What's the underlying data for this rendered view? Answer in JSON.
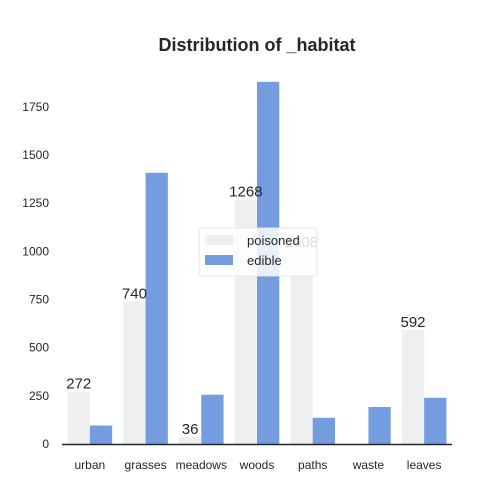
{
  "chart_data": {
    "type": "bar",
    "title": "Distribution of _habitat",
    "xlabel": "",
    "ylabel": "",
    "categories": [
      "urban",
      "grasses",
      "meadows",
      "woods",
      "paths",
      "waste",
      "leaves"
    ],
    "series": [
      {
        "name": "poisoned",
        "color": "#eeeff0",
        "values": [
          272,
          740,
          36,
          1268,
          1008,
          0,
          592
        ]
      },
      {
        "name": "edible",
        "color": "#739ddf",
        "values": [
          96,
          1408,
          256,
          1880,
          136,
          192,
          240
        ]
      }
    ],
    "data_labels": [
      "272",
      "740",
      "36",
      "1268",
      "1008",
      "",
      "592"
    ],
    "ylim": [
      0,
      1900
    ],
    "yticks": [
      0,
      250,
      500,
      750,
      1000,
      1250,
      1500,
      1750
    ],
    "grid": false,
    "legend_position": "center"
  }
}
